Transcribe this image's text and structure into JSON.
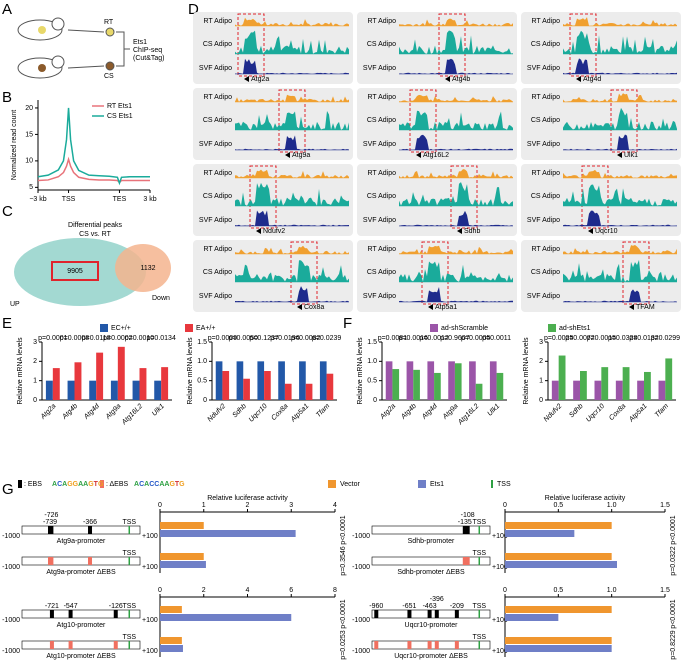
{
  "panels": [
    "A",
    "B",
    "C",
    "D",
    "E",
    "F",
    "G"
  ],
  "panel_a": {
    "rt": "RT",
    "cs": "CS",
    "assay": [
      "Ets1",
      "ChIP-seq",
      "(Cut&Tag)"
    ]
  },
  "panel_c": {
    "title": [
      "Differential peaks",
      "CS vs. RT"
    ],
    "up_count": 9905,
    "down_count": 1132,
    "up": "UP",
    "down": "Down"
  },
  "panel_d": {
    "tracks": [
      "RT Adipo",
      "CS Adipo",
      "SVF Adipo"
    ],
    "genes": [
      "Atg2a",
      "Atg4b",
      "Atg4d",
      "Atg9a",
      "Atg16L2",
      "Ulk1",
      "Ndufv2",
      "Sdhb",
      "Uqcr10",
      "Cox8a",
      "Atp5a1",
      "TFAM"
    ]
  },
  "panel_g": {
    "ebs": ": EBS",
    "debs": ": ΔEBS",
    "motif": "ACAGGAAGTG",
    "motif_mut": "ACACCAAGTG",
    "tss": "TSS",
    "range": [
      {
        "value": -1000,
        "label": "-1000"
      },
      {
        "value": 100,
        "label": "+100"
      }
    ],
    "constructs": [
      {
        "name": "Atg9a-promoter",
        "mutant": "Atg9a-promoter ΔEBS",
        "sites": [
          -739,
          -726,
          -366
        ]
      },
      {
        "name": "Atg10-promoter",
        "mutant": "Atg10-promoter ΔEBS",
        "sites": [
          -721,
          -547,
          -126
        ]
      },
      {
        "name": "Sdhb-promoter",
        "mutant": "Sdhb-promoter ΔEBS",
        "sites": [
          -135,
          -108
        ]
      },
      {
        "name": "Uqcr10-promoter",
        "mutant": "Uqcr10-promoter ΔEBS",
        "sites": [
          -960,
          -651,
          -463,
          -396,
          -209
        ]
      }
    ]
  },
  "chart_data": [
    {
      "type": "line",
      "ylabel": "Normalized read count",
      "x": [
        0,
        10,
        20,
        25,
        28,
        30,
        32,
        35,
        40,
        50,
        60,
        70,
        78,
        80,
        82,
        90,
        100,
        110
      ],
      "xlim": [
        0,
        110
      ],
      "xticks": [
        {
          "value": 0,
          "label": "−3 kb"
        },
        {
          "value": 30,
          "label": "TSS"
        },
        {
          "value": 80,
          "label": "TES"
        },
        {
          "value": 110,
          "label": "3 kb"
        }
      ],
      "ylim": [
        4.5,
        21.5
      ],
      "yticks": [
        5,
        10,
        15,
        20
      ],
      "series": [
        {
          "name": "RT Ets1",
          "color": "#e8737a",
          "values": [
            6.3,
            6.4,
            7,
            7.8,
            9,
            10.3,
            9,
            7.8,
            6.9,
            6.5,
            6.4,
            6.4,
            6.3,
            5.9,
            6.3,
            6.3,
            6.3,
            6.3
          ]
        },
        {
          "name": "CS Ets1",
          "color": "#1aab9b",
          "values": [
            7,
            7.3,
            8.3,
            10,
            14,
            20,
            14,
            10,
            8.2,
            7.3,
            7.2,
            7.1,
            6.9,
            5.8,
            6.9,
            7,
            7,
            7
          ]
        }
      ]
    },
    {
      "type": "bar",
      "ylabel": "Relative mRNA levels",
      "categories": [
        "Atg2a",
        "Atg4b",
        "Atg4d",
        "Atg9a",
        "Atg16L2",
        "Ulk1"
      ],
      "ylim": [
        0,
        3
      ],
      "yticks": [
        0,
        1,
        2,
        3
      ],
      "series": [
        {
          "name": "EC+/+",
          "color": "#2258a8",
          "values": [
            1,
            1,
            1,
            1,
            1,
            1
          ]
        },
        {
          "name": "EA+/+",
          "color": "#e8383d",
          "values": [
            1.65,
            1.95,
            2.45,
            2.75,
            1.65,
            1.7
          ]
        }
      ],
      "annotations": [
        "p=0.0001",
        "p=0.0008",
        "p=0.0118",
        "p=0.0002",
        "p=0.0010",
        "p=0.0134"
      ]
    },
    {
      "type": "bar",
      "ylabel": "Relative mRNA levels",
      "categories": [
        "Ndufv2",
        "Sdhb",
        "Uqcr10",
        "Cox8a",
        "Atp5a1",
        "Tfam"
      ],
      "ylim": [
        0,
        1.5
      ],
      "yticks": [
        0,
        0.5,
        {
          "value": 1,
          "label": "1.0"
        },
        1.5
      ],
      "series": [
        {
          "color": "#2258a8",
          "values": [
            1,
            1,
            1,
            1,
            1,
            1
          ]
        },
        {
          "color": "#e8383d",
          "values": [
            0.75,
            0.55,
            0.75,
            0.42,
            0.42,
            0.68
          ]
        }
      ],
      "annotations": [
        "p=0.0009",
        "p=0.0050",
        "p=0.1237",
        "p=0.0196",
        "p=0.0082",
        "p=0.0239"
      ]
    },
    {
      "type": "bar",
      "ylabel": "Relative mRNA levels",
      "categories": [
        "Atg2a",
        "Atg4b",
        "Atg4d",
        "Atg9a",
        "Atg16L2",
        "Ulk1"
      ],
      "ylim": [
        0,
        1.5
      ],
      "yticks": [
        0,
        0.5,
        {
          "value": 1,
          "label": "1.0"
        },
        1.5
      ],
      "series": [
        {
          "name": "ad-shScramble",
          "color": "#9b55a8",
          "values": [
            1,
            1,
            1,
            1,
            1,
            1
          ]
        },
        {
          "name": "ad-shEts1",
          "color": "#4caf50",
          "values": [
            0.8,
            0.78,
            0.7,
            0.95,
            0.42,
            0.7
          ]
        }
      ],
      "annotations": [
        "p=0.0081",
        "p=0.0016",
        "p=0.0012",
        "p=0.9607",
        "p=0.0005",
        "p=0.0011"
      ]
    },
    {
      "type": "bar",
      "ylabel": "Relative mRNA levels",
      "categories": [
        "Ndufv2",
        "Sdhb",
        "Uqcr10",
        "Cox8a",
        "Atp5a1",
        "Tfam"
      ],
      "ylim": [
        0,
        3
      ],
      "yticks": [
        0,
        1,
        2,
        3
      ],
      "series": [
        {
          "color": "#9b55a8",
          "values": [
            1,
            1,
            1,
            1,
            1,
            1
          ]
        },
        {
          "color": "#4caf50",
          "values": [
            2.3,
            1.5,
            1.7,
            1.7,
            1.45,
            2.15
          ]
        }
      ],
      "annotations": [
        "p=0.0025",
        "p=0.0072",
        "p=0.0015",
        "p=0.0328",
        "p=0.0132",
        "p=0.0299"
      ]
    },
    {
      "type": "hbar",
      "title": "Relative luciferase activity",
      "xlim": [
        0,
        4
      ],
      "xticks": [
        0,
        1,
        2,
        3,
        4
      ],
      "series": [
        {
          "name": "Vector",
          "color": "#f0962e",
          "values": [
            1,
            1
          ]
        },
        {
          "name": "Ets1",
          "color": "#6f7fc7",
          "values": [
            3.1,
            1.05
          ]
        }
      ],
      "annotations": [
        "p<0.0001",
        "p=0.3546"
      ]
    },
    {
      "type": "hbar",
      "xlim": [
        0,
        8
      ],
      "xticks": [
        0,
        2,
        4,
        6,
        8
      ],
      "series": [
        {
          "color": "#f0962e",
          "values": [
            1,
            1
          ]
        },
        {
          "color": "#6f7fc7",
          "values": [
            6,
            1.05
          ]
        }
      ],
      "annotations": [
        "p<0.0001",
        "p=0.0253"
      ]
    },
    {
      "type": "hbar",
      "title": "Relative luciferase activity",
      "xlim": [
        0,
        1.5
      ],
      "xticks": [
        0,
        0.5,
        {
          "value": 1,
          "label": "1.0"
        },
        1.5
      ],
      "series": [
        {
          "color": "#f0962e",
          "values": [
            1,
            1
          ]
        },
        {
          "color": "#6f7fc7",
          "values": [
            0.65,
            1.05
          ]
        }
      ],
      "annotations": [
        "p<0.0001",
        "p=0.0322"
      ]
    },
    {
      "type": "hbar",
      "xlim": [
        0,
        1.5
      ],
      "xticks": [
        0,
        0.5,
        {
          "value": 1,
          "label": "1.0"
        },
        1.5
      ],
      "series": [
        {
          "color": "#f0962e",
          "values": [
            1,
            1
          ]
        },
        {
          "color": "#6f7fc7",
          "values": [
            0.5,
            1
          ]
        }
      ],
      "annotations": [
        "p<0.0001",
        "p=0.8229"
      ]
    }
  ]
}
